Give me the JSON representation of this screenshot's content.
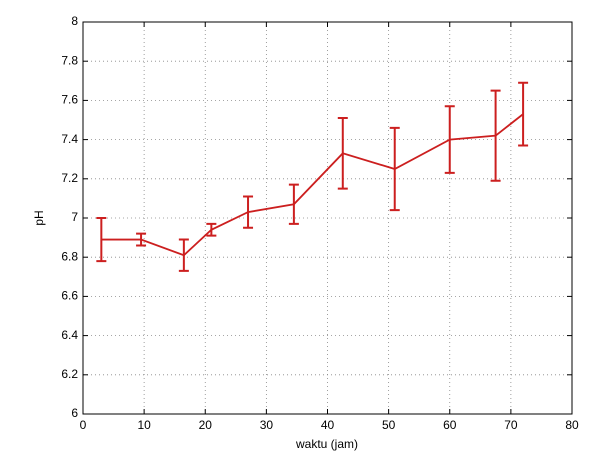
{
  "chart_data": {
    "type": "line",
    "xlabel": "waktu (jam)",
    "ylabel": "pH",
    "x": [
      3,
      9.5,
      16.5,
      21,
      27,
      34.5,
      42.5,
      51,
      60,
      67.5,
      72
    ],
    "series": [
      {
        "color": "#cc1f1f",
        "values": [
          6.89,
          6.89,
          6.81,
          6.94,
          7.03,
          7.07,
          7.33,
          7.25,
          7.4,
          7.42,
          7.53
        ],
        "errors": [
          0.11,
          0.03,
          0.08,
          0.03,
          0.08,
          0.1,
          0.18,
          0.21,
          0.17,
          0.23,
          0.16
        ]
      }
    ],
    "xlim": [
      0,
      80
    ],
    "xticks": [
      0,
      10,
      20,
      30,
      40,
      50,
      60,
      70,
      80
    ],
    "ylim": [
      6,
      8
    ],
    "yticks": [
      6,
      6.2,
      6.4,
      6.6,
      6.8,
      7,
      7.2,
      7.4,
      7.6,
      7.8,
      8
    ],
    "grid": true
  }
}
